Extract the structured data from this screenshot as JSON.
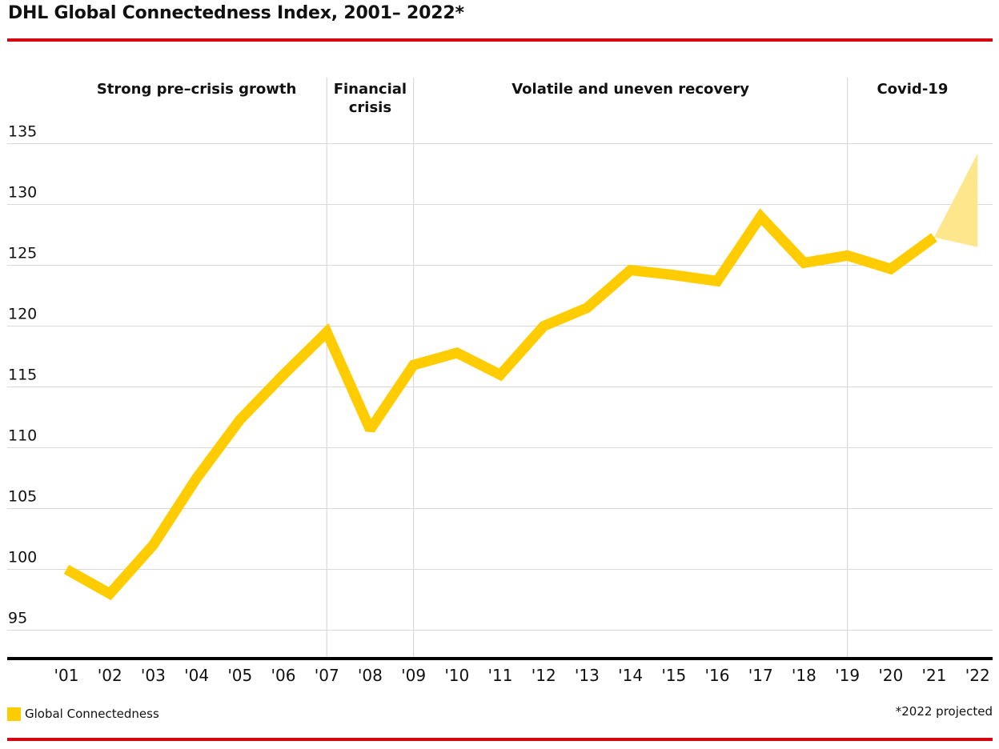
{
  "title": "DHL Global Connectedness Index, 2001– 2022*",
  "colors": {
    "accent_red": "#d40511",
    "line_yellow": "#ffcc00",
    "projection_yellow": "#fde68c",
    "grid": "#d9d9d9",
    "axis": "#000000"
  },
  "legend": {
    "label": "Global Connectedness"
  },
  "footnote": "*2022 projected",
  "chart_data": {
    "type": "line",
    "title": "DHL Global Connectedness Index, 2001– 2022*",
    "xlabel": "",
    "ylabel": "",
    "categories": [
      "'01",
      "'02",
      "'03",
      "'04",
      "'05",
      "'06",
      "'07",
      "'08",
      "'09",
      "'10",
      "'11",
      "'12",
      "'13",
      "'14",
      "'15",
      "'16",
      "'17",
      "'18",
      "'19",
      "'20",
      "'21",
      "'22"
    ],
    "y_ticks": [
      95,
      100,
      105,
      110,
      115,
      120,
      125,
      130,
      135
    ],
    "ylim": [
      92.5,
      135
    ],
    "grid": true,
    "legend_position": "bottom-left",
    "series": [
      {
        "name": "Global Connectedness",
        "values": [
          100,
          98,
          102,
          107.5,
          112.3,
          116,
          119.5,
          111.5,
          116.8,
          117.8,
          116,
          120,
          121.5,
          124.6,
          124.2,
          123.7,
          129,
          125.2,
          125.8,
          124.7,
          127.3,
          null
        ]
      }
    ],
    "projection": {
      "year": "'22",
      "from": 127.3,
      "high": 134.2,
      "low": 126.5
    },
    "periods": [
      {
        "label": "Strong pre–crisis growth",
        "start": 0,
        "end": 6
      },
      {
        "label_lines": [
          "Financial",
          "crisis"
        ],
        "start": 6,
        "end": 8
      },
      {
        "label": "Volatile and uneven recovery",
        "start": 8,
        "end": 18
      },
      {
        "label": "Covid-19",
        "start": 18,
        "end": 21
      }
    ]
  }
}
